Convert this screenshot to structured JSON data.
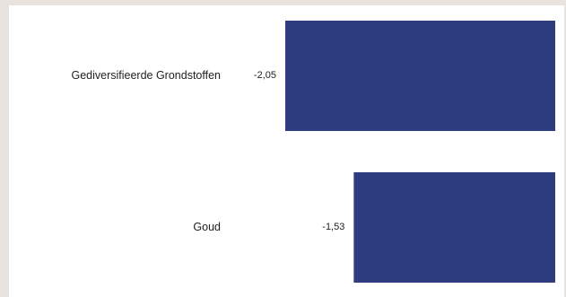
{
  "chart_data": {
    "type": "bar",
    "orientation": "horizontal",
    "categories": [
      "Gediversifieerde Grondstoffen",
      "Goud"
    ],
    "values": [
      -2.05,
      -1.53
    ],
    "value_labels": [
      "-2,05",
      "-1,53"
    ],
    "xlim": [
      -2.05,
      0
    ],
    "bar_color": "#2e3d80",
    "grid": false,
    "title": "",
    "xlabel": "",
    "ylabel": ""
  }
}
